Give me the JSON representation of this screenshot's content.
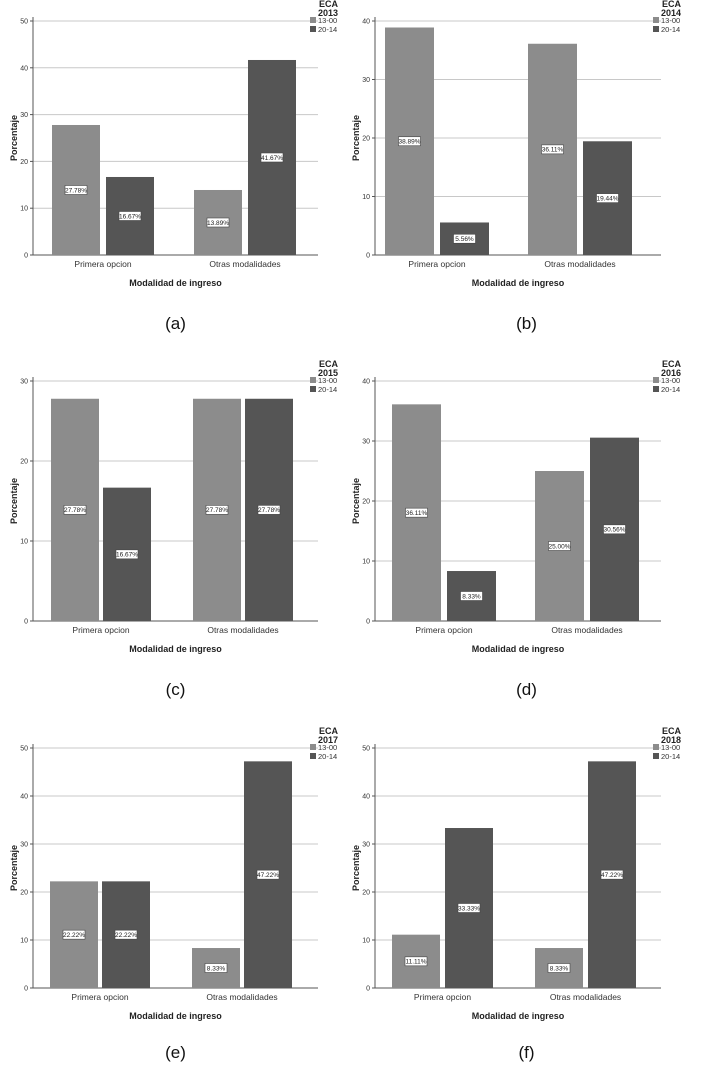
{
  "colors": {
    "series_13_00": "#8c8c8c",
    "series_20_14": "#555555",
    "gridline": "#c8c8c8",
    "axis": "#555555"
  },
  "chart_data": [
    {
      "type": "bar",
      "panel_label": "(a)",
      "legend_title": [
        "ECA",
        "2013"
      ],
      "categories": [
        "Primera opcion",
        "Otras modalidades"
      ],
      "series": [
        {
          "name": "13-00",
          "values": [
            27.78,
            13.89
          ],
          "labels": [
            "27.78%",
            "13.89%"
          ]
        },
        {
          "name": "20-14",
          "values": [
            16.67,
            41.67
          ],
          "labels": [
            "16.67%",
            "41.67%"
          ]
        }
      ],
      "xlabel": "Modalidad de ingreso",
      "ylabel": "Porcentaje",
      "ylim": [
        0,
        50
      ],
      "yticks": [
        0,
        10,
        20,
        30,
        40,
        50
      ],
      "grid": true,
      "legend_position": "top-right"
    },
    {
      "type": "bar",
      "panel_label": "(b)",
      "legend_title": [
        "ECA",
        "2014"
      ],
      "categories": [
        "Primera opcion",
        "Otras modalidades"
      ],
      "series": [
        {
          "name": "13-00",
          "values": [
            38.89,
            36.11
          ],
          "labels": [
            "38.89%",
            "36.11%"
          ]
        },
        {
          "name": "20-14",
          "values": [
            5.56,
            19.44
          ],
          "labels": [
            "5.56%",
            "19.44%"
          ]
        }
      ],
      "xlabel": "Modalidad de ingreso",
      "ylabel": "Porcentaje",
      "ylim": [
        0,
        40
      ],
      "yticks": [
        0,
        10,
        20,
        30,
        40
      ],
      "grid": true,
      "legend_position": "top-right"
    },
    {
      "type": "bar",
      "panel_label": "(c)",
      "legend_title": [
        "ECA",
        "2015"
      ],
      "categories": [
        "Primera opcion",
        "Otras modalidades"
      ],
      "series": [
        {
          "name": "13-00",
          "values": [
            27.78,
            27.78
          ],
          "labels": [
            "27.78%",
            "27.78%"
          ]
        },
        {
          "name": "20-14",
          "values": [
            16.67,
            27.78
          ],
          "labels": [
            "16.67%",
            "27.78%"
          ]
        }
      ],
      "xlabel": "Modalidad de ingreso",
      "ylabel": "Porcentaje",
      "ylim": [
        0,
        30
      ],
      "yticks": [
        0,
        10,
        20,
        30
      ],
      "grid": true,
      "legend_position": "top-right"
    },
    {
      "type": "bar",
      "panel_label": "(d)",
      "legend_title": [
        "ECA",
        "2016"
      ],
      "categories": [
        "Primera opcion",
        "Otras modalidades"
      ],
      "series": [
        {
          "name": "13-00",
          "values": [
            36.11,
            25.0
          ],
          "labels": [
            "36.11%",
            "25.00%"
          ]
        },
        {
          "name": "20-14",
          "values": [
            8.33,
            30.56
          ],
          "labels": [
            "8.33%",
            "30.56%"
          ]
        }
      ],
      "xlabel": "Modalidad de ingreso",
      "ylabel": "Porcentaje",
      "ylim": [
        0,
        40
      ],
      "yticks": [
        0,
        10,
        20,
        30,
        40
      ],
      "grid": true,
      "legend_position": "top-right"
    },
    {
      "type": "bar",
      "panel_label": "(e)",
      "legend_title": [
        "ECA",
        "2017"
      ],
      "categories": [
        "Primera opcion",
        "Otras modalidades"
      ],
      "series": [
        {
          "name": "13-00",
          "values": [
            22.22,
            8.33
          ],
          "labels": [
            "22.22%",
            "8.33%"
          ]
        },
        {
          "name": "20-14",
          "values": [
            22.22,
            47.22
          ],
          "labels": [
            "22.22%",
            "47.22%"
          ]
        }
      ],
      "xlabel": "Modalidad de ingreso",
      "ylabel": "Porcentaje",
      "ylim": [
        0,
        50
      ],
      "yticks": [
        0,
        10,
        20,
        30,
        40,
        50
      ],
      "grid": true,
      "legend_position": "top-right"
    },
    {
      "type": "bar",
      "panel_label": "(f)",
      "legend_title": [
        "ECA",
        "2018"
      ],
      "categories": [
        "Primera opcion",
        "Otras modalidades"
      ],
      "series": [
        {
          "name": "13-00",
          "values": [
            11.11,
            8.33
          ],
          "labels": [
            "11.11%",
            "8.33%"
          ]
        },
        {
          "name": "20-14",
          "values": [
            33.33,
            47.22
          ],
          "labels": [
            "33.33%",
            "47.22%"
          ]
        }
      ],
      "xlabel": "Modalidad de ingreso",
      "ylabel": "Porcentaje",
      "ylim": [
        0,
        50
      ],
      "yticks": [
        0,
        10,
        20,
        30,
        40,
        50
      ],
      "grid": true,
      "legend_position": "top-right"
    }
  ]
}
